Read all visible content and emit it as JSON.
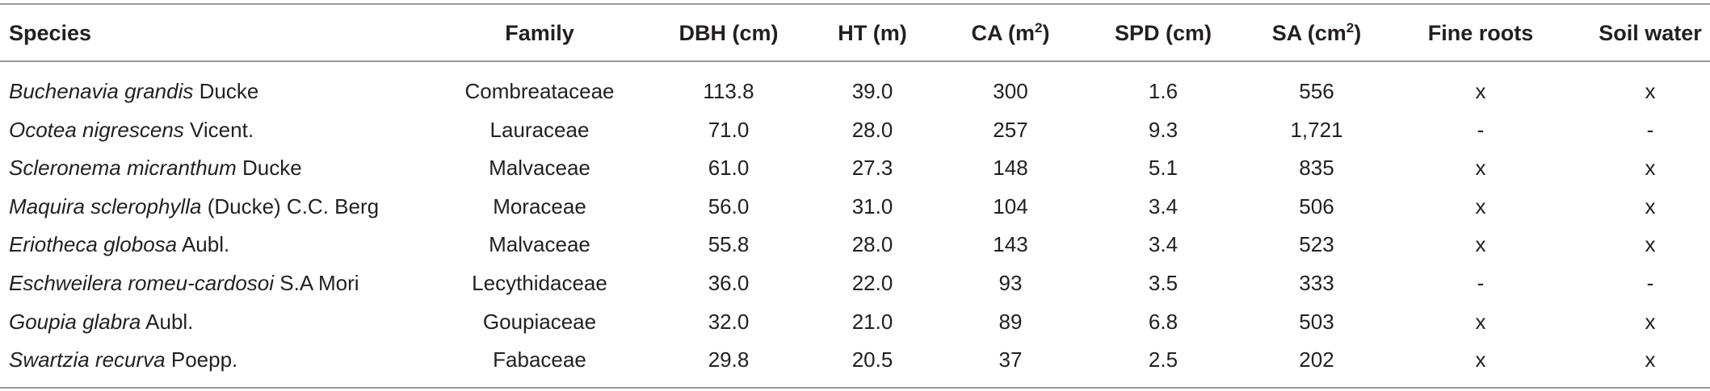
{
  "table": {
    "header": [
      {
        "text": "Species"
      },
      {
        "text": "Family"
      },
      {
        "text": "DBH (cm)"
      },
      {
        "text": "HT (m)"
      },
      {
        "text": "CA (m",
        "sup": "2",
        "tail": ")"
      },
      {
        "text": "SPD (cm)"
      },
      {
        "text": "SA (cm",
        "sup": "2",
        "tail": ")"
      },
      {
        "text": "Fine roots"
      },
      {
        "text": "Soil water"
      }
    ],
    "rows": [
      [
        {
          "name": "Buchenavia grandis",
          "authority": "Ducke"
        },
        "Combreataceae",
        "113.8",
        "39.0",
        "300",
        "1.6",
        "556",
        "x",
        "x"
      ],
      [
        {
          "name": "Ocotea nigrescens",
          "authority": "Vicent."
        },
        "Lauraceae",
        "71.0",
        "28.0",
        "257",
        "9.3",
        "1,721",
        "-",
        "-"
      ],
      [
        {
          "name": "Scleronema micranthum",
          "authority": "Ducke"
        },
        "Malvaceae",
        "61.0",
        "27.3",
        "148",
        "5.1",
        "835",
        "x",
        "x"
      ],
      [
        {
          "name": "Maquira sclerophylla",
          "authority": "(Ducke) C.C. Berg"
        },
        "Moraceae",
        "56.0",
        "31.0",
        "104",
        "3.4",
        "506",
        "x",
        "x"
      ],
      [
        {
          "name": "Eriotheca globosa",
          "authority": "Aubl."
        },
        "Malvaceae",
        "55.8",
        "28.0",
        "143",
        "3.4",
        "523",
        "x",
        "x"
      ],
      [
        {
          "name": "Eschweilera romeu-cardosoi",
          "authority": "S.A Mori"
        },
        "Lecythidaceae",
        "36.0",
        "22.0",
        "93",
        "3.5",
        "333",
        "-",
        "-"
      ],
      [
        {
          "name": "Goupia glabra",
          "authority": "Aubl."
        },
        "Goupiaceae",
        "32.0",
        "21.0",
        "89",
        "6.8",
        "503",
        "x",
        "x"
      ],
      [
        {
          "name": "Swartzia recurva",
          "authority": "Poepp."
        },
        "Fabaceae",
        "29.8",
        "20.5",
        "37",
        "2.5",
        "202",
        "x",
        "x"
      ]
    ]
  }
}
